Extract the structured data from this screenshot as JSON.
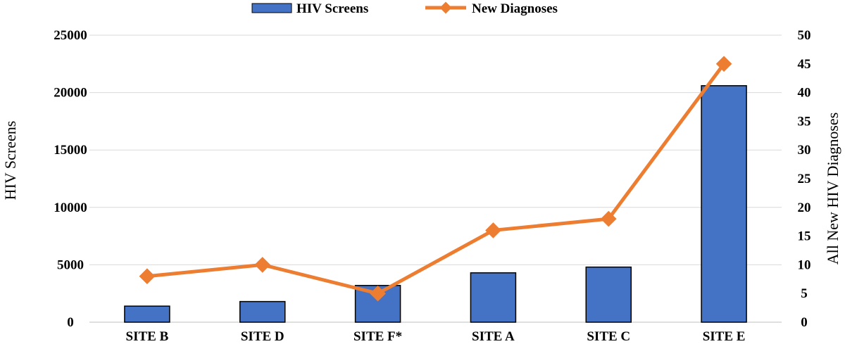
{
  "chart_data": {
    "type": "bar",
    "categories": [
      "SITE B",
      "SITE D",
      "SITE F*",
      "SITE A",
      "SITE C",
      "SITE E"
    ],
    "series": [
      {
        "name": "HIV Screens",
        "type": "bar",
        "axis": "left",
        "color": "#4472c4",
        "values": [
          1400,
          1800,
          3200,
          4300,
          4800,
          20600
        ]
      },
      {
        "name": "New Diagnoses",
        "type": "line",
        "axis": "right",
        "color": "#ed7d31",
        "values": [
          8,
          10,
          5,
          16,
          18,
          45
        ]
      }
    ],
    "ylabel": "HIV Screens",
    "y2label": "All New HIV Diagnoses",
    "ylim": [
      0,
      25000
    ],
    "y2lim": [
      0,
      50
    ],
    "yticks": [
      "0",
      "5000",
      "10000",
      "15000",
      "20000",
      "25000"
    ],
    "y2ticks": [
      "0",
      "5",
      "10",
      "15",
      "20",
      "25",
      "30",
      "35",
      "40",
      "45",
      "50"
    ],
    "grid": true,
    "legend": "top-center"
  }
}
